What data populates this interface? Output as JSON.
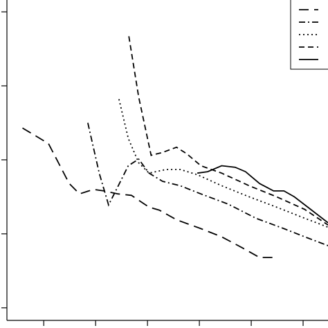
{
  "chart_data": {
    "type": "line",
    "xlim": [
      0.29,
      6.48
    ],
    "ylim": [
      -0.17,
      4.16
    ],
    "xticks": [
      1,
      2,
      3,
      4,
      5,
      6
    ],
    "yticks": [
      0,
      1,
      2,
      3,
      4
    ],
    "legend": "top-right",
    "series": [
      {
        "color": "#000000",
        "dash": "14 8",
        "x": [
          0.59,
          1.09,
          1.49,
          1.69,
          1.96,
          2.16,
          2.43,
          2.69,
          3.03,
          3.23,
          3.56,
          4.03,
          4.43,
          4.83,
          5.16,
          5.49
        ],
        "values": [
          2.43,
          2.22,
          1.68,
          1.54,
          1.6,
          1.58,
          1.54,
          1.52,
          1.36,
          1.32,
          1.19,
          1.07,
          0.96,
          0.81,
          0.68,
          0.68
        ]
      },
      {
        "color": "#000000",
        "dash": "9 4 2 4",
        "x": [
          1.85,
          2.07,
          2.25,
          2.43,
          2.63,
          2.83,
          3.03,
          3.29,
          3.63,
          4.03,
          4.56,
          5.09,
          5.63,
          6.03,
          6.48
        ],
        "values": [
          2.5,
          1.82,
          1.39,
          1.64,
          1.92,
          2.01,
          1.82,
          1.71,
          1.65,
          1.54,
          1.4,
          1.21,
          1.07,
          0.96,
          0.84
        ]
      },
      {
        "color": "#000000",
        "dash": "2 4",
        "x": [
          2.45,
          2.63,
          2.83,
          3.03,
          3.36,
          3.63,
          3.96,
          4.43,
          4.96,
          5.49,
          6.03,
          6.48
        ],
        "values": [
          2.82,
          2.29,
          1.96,
          1.82,
          1.87,
          1.87,
          1.8,
          1.65,
          1.5,
          1.36,
          1.21,
          1.09
        ]
      },
      {
        "color": "#000000",
        "dash": "8 5",
        "x": [
          2.64,
          2.83,
          3.07,
          3.29,
          3.56,
          3.76,
          4.03,
          4.43,
          4.96,
          5.49,
          6.03,
          6.48
        ],
        "values": [
          3.67,
          2.85,
          2.06,
          2.1,
          2.17,
          2.08,
          1.92,
          1.82,
          1.65,
          1.5,
          1.33,
          1.12
        ]
      },
      {
        "color": "#000000",
        "dash": "none",
        "x": [
          3.96,
          4.16,
          4.43,
          4.69,
          4.89,
          5.16,
          5.43,
          5.63,
          5.83,
          6.09,
          6.48
        ],
        "values": [
          1.82,
          1.84,
          1.92,
          1.9,
          1.84,
          1.68,
          1.58,
          1.58,
          1.5,
          1.36,
          1.15
        ]
      }
    ]
  }
}
